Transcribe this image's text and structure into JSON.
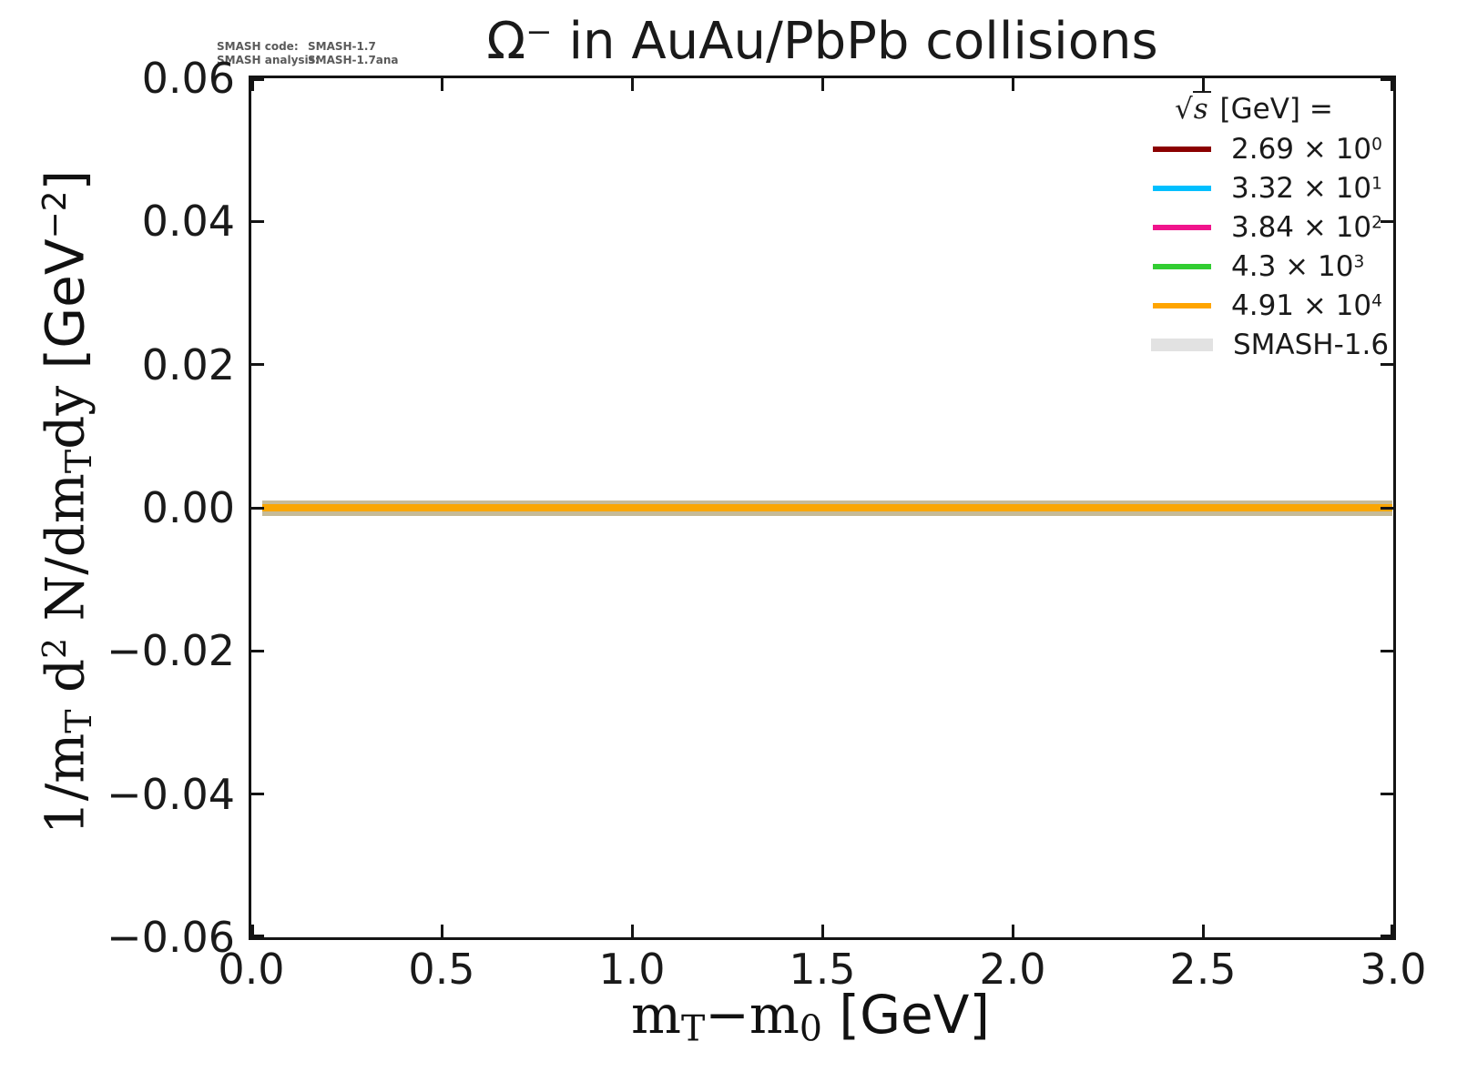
{
  "title": "Ω⁻ in AuAu/PbPb collisions",
  "annotation": {
    "rows": [
      {
        "label": "SMASH code:",
        "value": "SMASH-1.7"
      },
      {
        "label": "SMASH analysis:",
        "value": "SMASH-1.7ana"
      }
    ],
    "color": "#5a5a5a"
  },
  "axes": {
    "xlabel": {
      "m1": "m",
      "sub1": "T",
      "minus": "−",
      "m2": "m",
      "sub2": "0",
      "unit": " [GeV]"
    },
    "ylabel": {
      "p1": "1/m",
      "sub1": "T",
      "p2": " d",
      "sup1": "2",
      "p3": " N/dm",
      "sub2": "T",
      "p4": "dy ",
      "unit_open": "[GeV",
      "unit_sup": "−2",
      "unit_close": "]"
    }
  },
  "legend": {
    "title": {
      "sqrt": "√",
      "s": "s",
      "rest": " [GeV] ="
    },
    "entries": [
      {
        "label_base": "2.69 × 10",
        "label_exp": "0",
        "color": "#8b0000",
        "swatch": "line"
      },
      {
        "label_base": "3.32 × 10",
        "label_exp": "1",
        "color": "#00bfff",
        "swatch": "line"
      },
      {
        "label_base": "3.84 × 10",
        "label_exp": "2",
        "color": "#f0148c",
        "swatch": "line"
      },
      {
        "label_base": "4.3 × 10",
        "label_exp": "3",
        "color": "#32cd32",
        "swatch": "line"
      },
      {
        "label_base": "4.91 × 10",
        "label_exp": "4",
        "color": "#ffa500",
        "swatch": "line"
      },
      {
        "label_base": "SMASH-1.6",
        "label_exp": "",
        "color": "#e2e2e2",
        "swatch": "band"
      }
    ]
  },
  "plot_style": {
    "spine_color": "#141414",
    "band_fill": "#c6bb98",
    "band_core": "#faa602",
    "background": "#ffffff"
  },
  "chart_data": {
    "type": "line",
    "title": "Ω⁻ in AuAu/PbPb collisions",
    "xlabel": "m_T − m_0 [GeV]",
    "ylabel": "1/m_T d² N/dm_T dy [GeV⁻²]",
    "xlim": [
      0.0,
      3.0
    ],
    "ylim": [
      -0.06,
      0.06
    ],
    "x_ticks": [
      0.0,
      0.5,
      1.0,
      1.5,
      2.0,
      2.5,
      3.0
    ],
    "x_tick_labels": [
      "0.0",
      "0.5",
      "1.0",
      "1.5",
      "2.0",
      "2.5",
      "3.0"
    ],
    "y_ticks": [
      0.06,
      0.04,
      0.02,
      0.0,
      -0.02,
      -0.04,
      -0.06
    ],
    "y_tick_labels": [
      "0.06",
      "0.04",
      "0.02",
      "0.00",
      "−0.02",
      "−0.04",
      "−0.06"
    ],
    "grid": false,
    "tick_direction": "in",
    "legend_position": "upper right",
    "legend_title": "√s [GeV] =",
    "series": [
      {
        "name": "√s = 2.69 × 10⁰ GeV",
        "color": "#8b0000",
        "style": "line",
        "x_range": [
          0.03,
          3.0
        ],
        "y": 0.0
      },
      {
        "name": "√s = 3.32 × 10¹ GeV",
        "color": "#00bfff",
        "style": "line",
        "x_range": [
          0.03,
          3.0
        ],
        "y": 0.0
      },
      {
        "name": "√s = 3.84 × 10² GeV",
        "color": "#f0148c",
        "style": "line",
        "x_range": [
          0.03,
          3.0
        ],
        "y": 0.0
      },
      {
        "name": "√s = 4.3 × 10³ GeV",
        "color": "#32cd32",
        "style": "line",
        "x_range": [
          0.03,
          3.0
        ],
        "y": 0.0
      },
      {
        "name": "√s = 4.91 × 10⁴ GeV",
        "color": "#ffa500",
        "style": "line",
        "x_range": [
          0.03,
          3.0
        ],
        "y": 0.0
      },
      {
        "name": "SMASH-1.6",
        "color": "#e2e2e2",
        "style": "band",
        "x_range": [
          0.03,
          3.0
        ],
        "y": 0.0
      }
    ]
  }
}
